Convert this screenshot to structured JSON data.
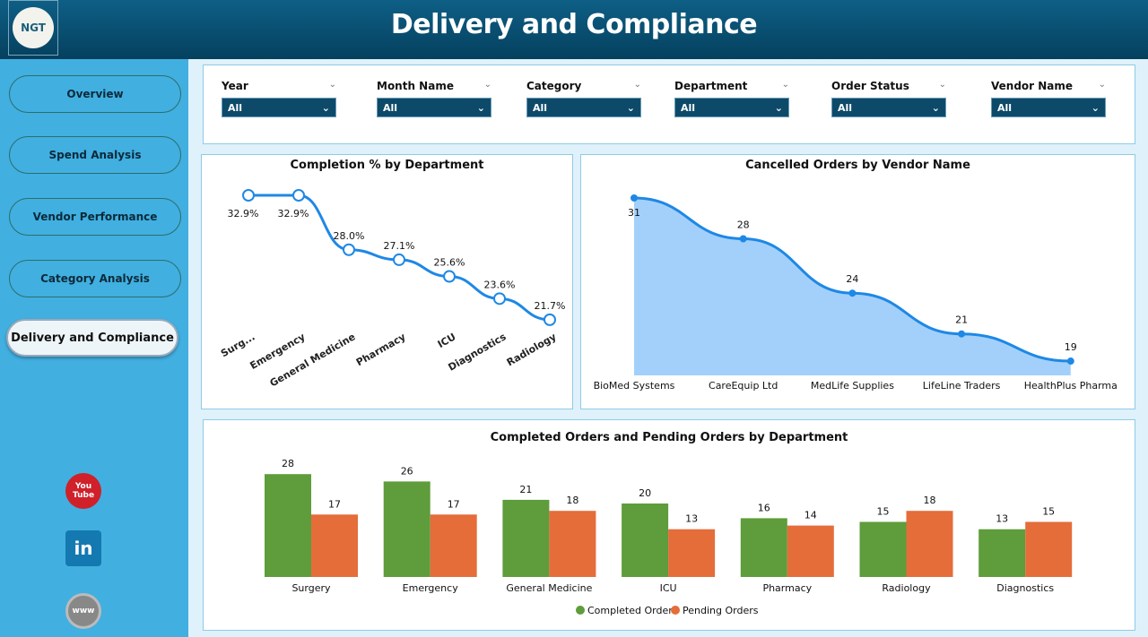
{
  "header": {
    "title": "Delivery and Compliance",
    "logo_text": "NGT"
  },
  "sidebar": {
    "items": [
      {
        "label": "Overview",
        "active": false
      },
      {
        "label": "Spend Analysis",
        "active": false
      },
      {
        "label": "Vendor Performance",
        "active": false
      },
      {
        "label": "Category Analysis",
        "active": false
      },
      {
        "label": "Delivery and Compliance",
        "active": true
      }
    ],
    "social": [
      {
        "icon": "youtube-icon",
        "label": "You Tube"
      },
      {
        "icon": "linkedin-icon",
        "label": "in"
      },
      {
        "icon": "globe-icon",
        "label": "www"
      }
    ]
  },
  "filters": [
    {
      "label": "Year",
      "value": "All"
    },
    {
      "label": "Month Name",
      "value": "All"
    },
    {
      "label": "Category",
      "value": "All"
    },
    {
      "label": "Department",
      "value": "All"
    },
    {
      "label": "Order Status",
      "value": "All"
    },
    {
      "label": "Vendor Name",
      "value": "All"
    }
  ],
  "colors": {
    "header": "#0a4f72",
    "sidebar": "#41afe0",
    "line": "#1e88e5",
    "area": "#a3d0fa",
    "completed": "#5e9c3c",
    "pending": "#e46d3a"
  },
  "chart_data": [
    {
      "type": "line",
      "title": "Completion % by Department",
      "categories": [
        "Surg...",
        "Emergency",
        "General Medicine",
        "Pharmacy",
        "ICU",
        "Diagnostics",
        "Radiology"
      ],
      "values": [
        32.9,
        32.9,
        28.0,
        27.1,
        25.6,
        23.6,
        21.7
      ],
      "labels": [
        "32.9%",
        "32.9%",
        "28.0%",
        "27.1%",
        "25.6%",
        "23.6%",
        "21.7%"
      ]
    },
    {
      "type": "area",
      "title": "Cancelled Orders by Vendor Name",
      "categories": [
        "BioMed Systems",
        "CareEquip Ltd",
        "MedLife Supplies",
        "LifeLine Traders",
        "HealthPlus Pharma"
      ],
      "values": [
        31,
        28,
        24,
        21,
        19
      ]
    },
    {
      "type": "bar",
      "title": "Completed Orders and Pending Orders by Department",
      "categories": [
        "Surgery",
        "Emergency",
        "General Medicine",
        "ICU",
        "Pharmacy",
        "Radiology",
        "Diagnostics"
      ],
      "series": [
        {
          "name": "Completed Orders",
          "values": [
            28,
            26,
            21,
            20,
            16,
            15,
            13
          ]
        },
        {
          "name": "Pending Orders",
          "values": [
            17,
            17,
            18,
            13,
            14,
            18,
            15
          ]
        }
      ],
      "legend": "bottom"
    }
  ]
}
